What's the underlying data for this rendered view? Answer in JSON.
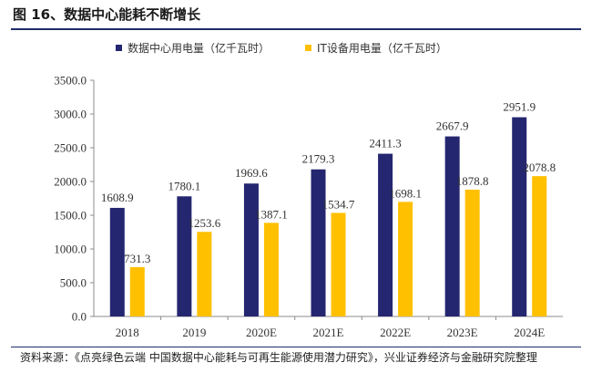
{
  "figure": {
    "title": "图 16、数据中心能耗不断增长",
    "source": "资料来源：《点亮绿色云端 中国数据中心能耗与可再生能源使用潜力研究》，兴业证券经济与金融研究院整理"
  },
  "colors": {
    "series1": "#242670",
    "series2": "#FFC000",
    "rule": "#1f2d6b",
    "axis": "#8c8c8c"
  },
  "chart_data": {
    "type": "bar",
    "categories": [
      "2018",
      "2019",
      "2020E",
      "2021E",
      "2022E",
      "2023E",
      "2024E"
    ],
    "series": [
      {
        "name": "数据中心用电量（亿千瓦时）",
        "values": [
          1608.9,
          1780.1,
          1969.6,
          2179.3,
          2411.3,
          2667.9,
          2951.9
        ]
      },
      {
        "name": "IT设备用电量（亿千瓦时）",
        "values": [
          731.3,
          1253.6,
          1387.1,
          1534.7,
          1698.1,
          1878.8,
          2078.8
        ]
      }
    ],
    "ylim": [
      0,
      3500
    ],
    "yticks": [
      "0.0",
      "500.0",
      "1000.0",
      "1500.0",
      "2000.0",
      "2500.0",
      "3000.0",
      "3500.0"
    ],
    "ytick_values": [
      0,
      500,
      1000,
      1500,
      2000,
      2500,
      3000,
      3500
    ],
    "grid": false,
    "legend_position": "top",
    "data_labels": true
  }
}
